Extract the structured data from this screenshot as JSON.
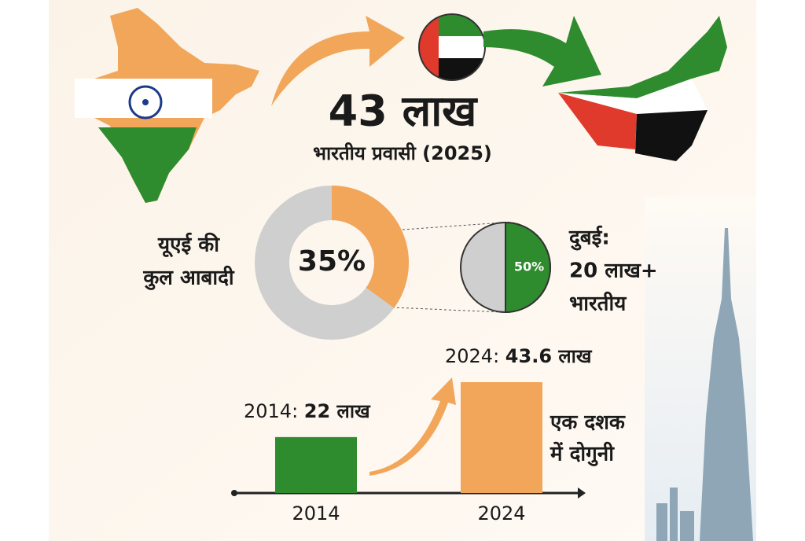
{
  "headline": {
    "title": "43 लाख",
    "subtitle": "भारतीय प्रवासी (2025)"
  },
  "chart_data": [
    {
      "type": "donut",
      "label": [
        "यूएई की",
        "कुल आबादी"
      ],
      "values": [
        35
      ],
      "value_labels": [
        "35%"
      ],
      "color": "#f2a65a",
      "rest_color": "#cfcfcf"
    },
    {
      "type": "pie",
      "label": [
        "दुबई:",
        "20 लाख+",
        "भारतीय"
      ],
      "values": [
        50
      ],
      "value_labels": [
        "50%"
      ],
      "color": "#2e8b2e",
      "rest_color": "#cfcfcf"
    },
    {
      "type": "bar",
      "categories": [
        "2014",
        "2024"
      ],
      "values": [
        22,
        43.6
      ],
      "value_labels": [
        [
          "2014: ",
          "22 लाख"
        ],
        [
          "2024: ",
          "43.6 लाख"
        ]
      ],
      "colors": [
        "#2e8b2e",
        "#f2a65a"
      ],
      "annotation": [
        "एक दशक",
        "में दोगुनी"
      ]
    }
  ]
}
